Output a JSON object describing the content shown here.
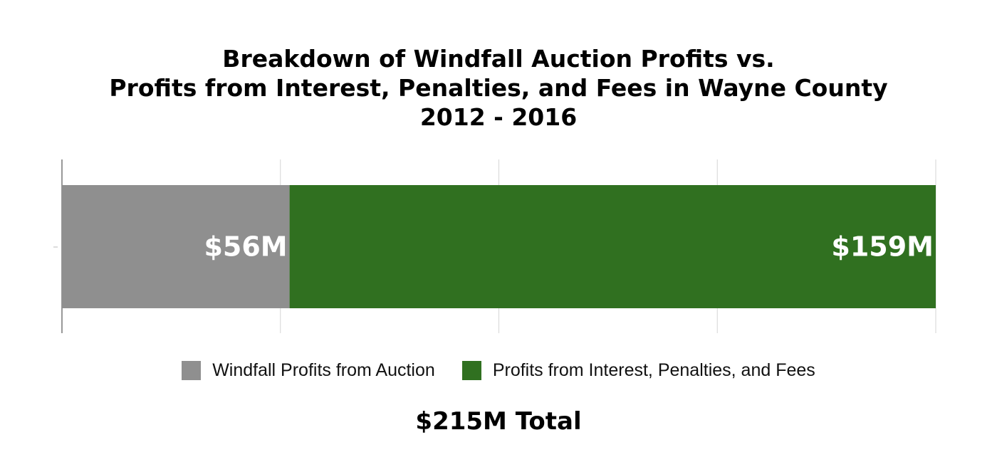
{
  "chart_data": {
    "type": "bar",
    "orientation": "horizontal-stacked",
    "title_lines": [
      "Breakdown of Windfall Auction Profits vs.",
      "Profits from Interest, Penalties, and Fees in Wayne County",
      "2012 - 2016"
    ],
    "series": [
      {
        "name": "Windfall Profits from Auction",
        "value": 56,
        "label": "$56M",
        "color": "#8f8f8f"
      },
      {
        "name": "Profits from Interest, Penalties, and Fees",
        "value": 159,
        "label": "$159M",
        "color": "#307020"
      }
    ],
    "xlim": [
      0,
      215
    ],
    "grid": true,
    "legend_position": "bottom",
    "total_label": "$215M Total"
  }
}
